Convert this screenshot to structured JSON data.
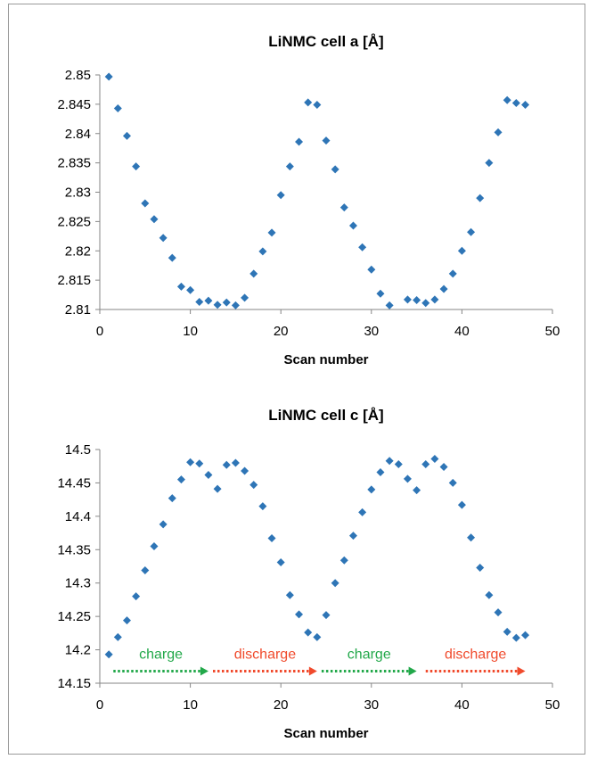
{
  "colors": {
    "marker": "#2E75B6",
    "charge": "#22A84A",
    "discharge": "#F04A2C",
    "axis": "#868686"
  },
  "chart_data": [
    {
      "type": "scatter",
      "title": "LiNMC cell a [Å]",
      "xlabel": "Scan number",
      "ylabel": "",
      "xlim": [
        0,
        50
      ],
      "ylim": [
        2.81,
        2.85
      ],
      "xticks": [
        0,
        10,
        20,
        30,
        40,
        50
      ],
      "yticks": [
        2.81,
        2.815,
        2.82,
        2.825,
        2.83,
        2.835,
        2.84,
        2.845,
        2.85
      ],
      "ytick_labels": [
        "2.81",
        "2.815",
        "2.82",
        "2.825",
        "2.83",
        "2.835",
        "2.84",
        "2.845",
        "2.85"
      ],
      "grid": false,
      "legend": "none",
      "x": [
        1,
        2,
        3,
        4,
        5,
        6,
        7,
        8,
        9,
        10,
        11,
        12,
        13,
        14,
        15,
        16,
        17,
        18,
        19,
        20,
        21,
        22,
        23,
        24,
        25,
        26,
        27,
        28,
        29,
        30,
        31,
        32,
        33,
        34,
        35,
        36,
        37,
        38,
        39,
        40,
        41,
        42,
        43,
        44,
        45,
        46,
        47
      ],
      "y": [
        2.8497,
        2.8443,
        2.8396,
        2.8344,
        2.8281,
        2.8254,
        2.8222,
        2.8188,
        2.8139,
        2.8133,
        2.8113,
        2.8115,
        2.8108,
        2.8112,
        2.8107,
        2.812,
        2.8161,
        2.8199,
        2.8231,
        2.8295,
        2.8344,
        2.8386,
        2.8453,
        2.8449,
        2.8388,
        2.8339,
        2.8274,
        2.8243,
        2.8206,
        2.8168,
        2.8127,
        2.8107,
        null,
        2.8117,
        2.8116,
        2.8111,
        2.8117,
        2.8135,
        2.8161,
        2.82,
        2.8232,
        2.829,
        2.835,
        2.8402,
        2.8457,
        2.8452,
        2.8449
      ]
    },
    {
      "type": "scatter",
      "title": "LiNMC cell c [Å]",
      "xlabel": "Scan number",
      "ylabel": "",
      "xlim": [
        0,
        50
      ],
      "ylim": [
        14.15,
        14.5
      ],
      "xticks": [
        0,
        10,
        20,
        30,
        40,
        50
      ],
      "yticks": [
        14.15,
        14.2,
        14.25,
        14.3,
        14.35,
        14.4,
        14.45,
        14.5
      ],
      "ytick_labels": [
        "14.15",
        "14.2",
        "14.25",
        "14.3",
        "14.35",
        "14.4",
        "14.45",
        "14.5"
      ],
      "grid": false,
      "legend": "none",
      "x": [
        1,
        2,
        3,
        4,
        5,
        6,
        7,
        8,
        9,
        10,
        11,
        12,
        13,
        14,
        15,
        16,
        17,
        18,
        19,
        20,
        21,
        22,
        23,
        24,
        25,
        26,
        27,
        28,
        29,
        30,
        31,
        32,
        33,
        34,
        35,
        36,
        37,
        38,
        39,
        40,
        41,
        42,
        43,
        44,
        45,
        46,
        47
      ],
      "y": [
        14.193,
        14.219,
        14.244,
        14.28,
        14.319,
        14.355,
        14.388,
        14.427,
        14.455,
        14.481,
        14.479,
        14.462,
        14.441,
        14.477,
        14.48,
        14.468,
        14.447,
        14.415,
        14.367,
        14.331,
        14.282,
        14.253,
        14.226,
        14.219,
        14.252,
        14.3,
        14.334,
        14.371,
        14.406,
        14.44,
        14.466,
        14.483,
        14.478,
        14.456,
        14.439,
        14.478,
        14.486,
        14.474,
        14.45,
        14.417,
        14.368,
        14.323,
        14.282,
        14.256,
        14.227,
        14.218,
        14.222
      ],
      "annotations": [
        {
          "text": "charge",
          "type": "charge",
          "x_start": 1.5,
          "x_end": 12
        },
        {
          "text": "discharge",
          "type": "discharge",
          "x_start": 12.5,
          "x_end": 24
        },
        {
          "text": "charge",
          "type": "charge",
          "x_start": 24.5,
          "x_end": 35
        },
        {
          "text": "discharge",
          "type": "discharge",
          "x_start": 36,
          "x_end": 47
        }
      ]
    }
  ]
}
